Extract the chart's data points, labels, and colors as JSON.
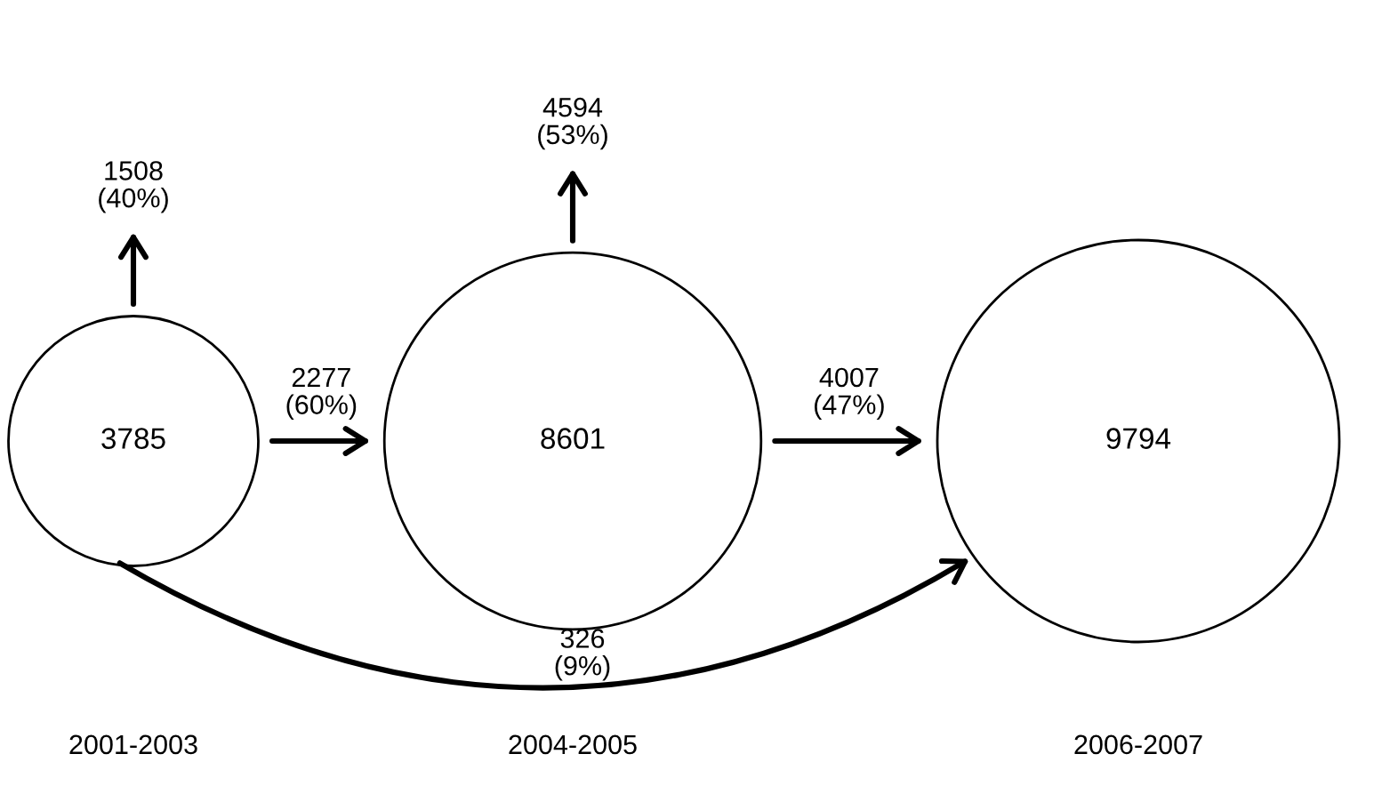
{
  "chart_data": {
    "type": "other",
    "categories": [
      "2001-2003",
      "2004-2005",
      "2006-2007"
    ],
    "values": [
      3785,
      8601,
      9794
    ],
    "color": "#ffffff",
    "data_labels": true,
    "annotations": [
      "1508\n(40%)",
      "2277\n(60%)",
      "4594\n(53%)",
      "4007\n(47%)",
      "326\n(9%)"
    ]
  }
}
